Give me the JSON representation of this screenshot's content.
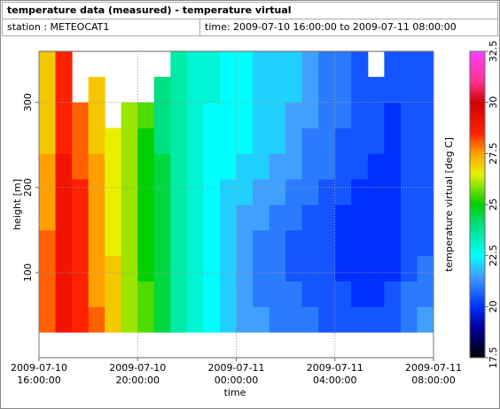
{
  "chart_data": {
    "type": "heatmap",
    "title": "temperature data (measured) - temperature virtual",
    "station": "station : METEOCAT1",
    "period": "time: 2009-07-10 16:00:00 to 2009-07-11 08:00:00",
    "xlabel": "time",
    "ylabel": "height [m]",
    "colorbar_label": "temperature virtual [deg C]",
    "xlim": [
      "2009-07-10 16:00:00",
      "2009-07-11 08:00:00"
    ],
    "xticks": [
      "2009-07-10 16:00:00",
      "2009-07-10 20:00:00",
      "2009-07-11 00:00:00",
      "2009-07-11 04:00:00",
      "2009-07-11 08:00:00"
    ],
    "ylim": [
      0,
      360
    ],
    "yticks": [
      100,
      200,
      300
    ],
    "grid": true,
    "clim": [
      17.5,
      32.5
    ],
    "cticks": [
      17.5,
      20,
      22.5,
      25,
      27.5,
      30,
      32.5
    ],
    "colorscale": [
      [
        17.5,
        "#000000"
      ],
      [
        19,
        "#0000a0"
      ],
      [
        20,
        "#0030ff"
      ],
      [
        21.5,
        "#40a0ff"
      ],
      [
        22.5,
        "#00ffff"
      ],
      [
        24,
        "#00e080"
      ],
      [
        25,
        "#00d000"
      ],
      [
        26.5,
        "#e8f000"
      ],
      [
        27.5,
        "#ffa000"
      ],
      [
        28.5,
        "#ff2000"
      ],
      [
        30,
        "#d00000"
      ],
      [
        31,
        "#ff3090"
      ],
      [
        32.5,
        "#ff40ff"
      ]
    ],
    "xbins": [
      "2009-07-10 16:00:00",
      "2009-07-10 16:40:00",
      "2009-07-10 17:20:00",
      "2009-07-10 18:00:00",
      "2009-07-10 18:40:00",
      "2009-07-10 19:20:00",
      "2009-07-10 20:00:00",
      "2009-07-10 20:40:00",
      "2009-07-10 21:20:00",
      "2009-07-10 22:00:00",
      "2009-07-10 22:40:00",
      "2009-07-10 23:20:00",
      "2009-07-11 00:00:00",
      "2009-07-11 00:40:00",
      "2009-07-11 01:20:00",
      "2009-07-11 02:00:00",
      "2009-07-11 02:40:00",
      "2009-07-11 03:20:00",
      "2009-07-11 04:00:00",
      "2009-07-11 04:40:00",
      "2009-07-11 05:20:00",
      "2009-07-11 06:00:00",
      "2009-07-11 06:40:00",
      "2009-07-11 07:20:00",
      "2009-07-11 08:00:00"
    ],
    "ybins": [
      30,
      60,
      90,
      120,
      150,
      180,
      210,
      240,
      270,
      300,
      330,
      360
    ],
    "z": [
      [
        28,
        29,
        28.5,
        28,
        27,
        26,
        25.5,
        24.5,
        23.5,
        23,
        22.5,
        22,
        21.5,
        21.5,
        21,
        21,
        21,
        20.5,
        20.5,
        20.5,
        20.5,
        20.5,
        21,
        21.5
      ],
      [
        28,
        29,
        28.5,
        27.5,
        27,
        26,
        25.5,
        24.5,
        23.5,
        23,
        22.5,
        22,
        21.5,
        21,
        21,
        21,
        20.5,
        20.5,
        20.5,
        20,
        20,
        20.5,
        21,
        21
      ],
      [
        28,
        29,
        28.5,
        27.5,
        27,
        26,
        25,
        24.5,
        23.5,
        23,
        22.5,
        22,
        21.5,
        21,
        21,
        20.5,
        20.5,
        20.5,
        20,
        20,
        20,
        20,
        20.5,
        21
      ],
      [
        28,
        29,
        28.5,
        27.5,
        26.5,
        26,
        25,
        24.5,
        23.5,
        23,
        22.5,
        22,
        21.5,
        21,
        21,
        20.5,
        20.5,
        20.5,
        20,
        20,
        20,
        20,
        20.5,
        20.5
      ],
      [
        27.5,
        29,
        28.5,
        27.5,
        26.5,
        26,
        25,
        24.5,
        23.5,
        23,
        22.5,
        22,
        21.5,
        21.5,
        21,
        21,
        20.5,
        20.5,
        20,
        20,
        20,
        20,
        20.5,
        20.5
      ],
      [
        27.5,
        29,
        28.5,
        27.5,
        26.5,
        26,
        25,
        24.5,
        23.5,
        23,
        22.5,
        22,
        22,
        21.5,
        21.5,
        21,
        21,
        20.5,
        20.5,
        20,
        20,
        20,
        20.5,
        20.5
      ],
      [
        27.5,
        29,
        28,
        27.5,
        26.5,
        26,
        25,
        24.5,
        23.5,
        23,
        22.5,
        22.5,
        22,
        22,
        21.5,
        21.5,
        21,
        21,
        20.5,
        20.5,
        20,
        20,
        20.5,
        20.5
      ],
      [
        27,
        28.5,
        28,
        27,
        26.5,
        26,
        25,
        24,
        23.5,
        23,
        22.5,
        22.5,
        22.5,
        22,
        22,
        21.5,
        21,
        21,
        20.5,
        20.5,
        20.5,
        20,
        20.5,
        20.5
      ],
      [
        27,
        28.5,
        28,
        27,
        null,
        26,
        25.5,
        24,
        23.5,
        23,
        22.5,
        22.5,
        22.5,
        22,
        22,
        21.5,
        21.5,
        21,
        21,
        20.5,
        20.5,
        20,
        20.5,
        20.5
      ],
      [
        27,
        28.5,
        null,
        27,
        null,
        null,
        null,
        24,
        23.5,
        23,
        23,
        22.5,
        22.5,
        22,
        22,
        22,
        21.5,
        21,
        21,
        20.5,
        20.5,
        20.5,
        20.5,
        20.5
      ],
      [
        27,
        28.5,
        null,
        null,
        null,
        null,
        null,
        null,
        23.5,
        23,
        23,
        22.5,
        22.5,
        22,
        22,
        22,
        21.5,
        21,
        21,
        20.5,
        null,
        20.5,
        20.5,
        20.5
      ]
    ]
  }
}
